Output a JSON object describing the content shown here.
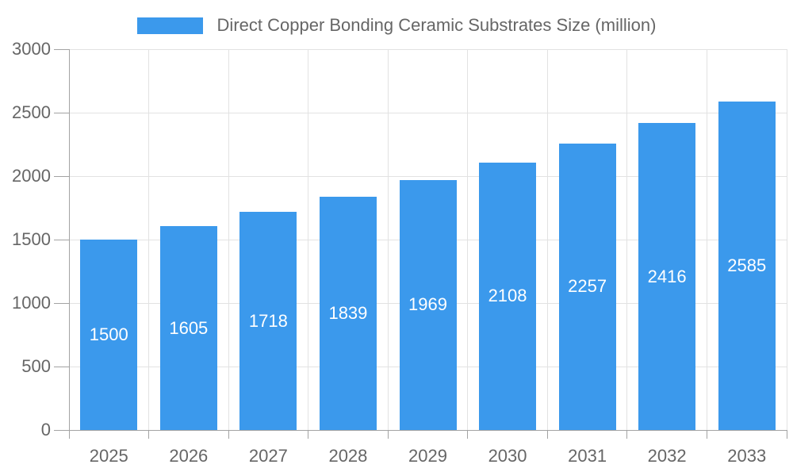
{
  "legend": {
    "label": "Direct Copper Bonding Ceramic Substrates Size (million)",
    "swatch_color": "#3b99ec"
  },
  "chart_data": {
    "type": "bar",
    "title": "Direct Copper Bonding Ceramic Substrates Size (million)",
    "categories": [
      "2025",
      "2026",
      "2027",
      "2028",
      "2029",
      "2030",
      "2031",
      "2032",
      "2033"
    ],
    "values": [
      1500,
      1605,
      1718,
      1839,
      1969,
      2108,
      2257,
      2416,
      2585
    ],
    "xlabel": "",
    "ylabel": "",
    "ylim": [
      0,
      3000
    ],
    "yticks": [
      0,
      500,
      1000,
      1500,
      2000,
      2500,
      3000
    ],
    "grid": true,
    "legend_position": "top",
    "value_labels": "inside-center-white",
    "colors": {
      "bar": "#3b99ec",
      "value_label": "#ffffff",
      "axis_text": "#666666",
      "legend_text": "#666666",
      "gridline": "#e2e2e2",
      "axis_line": "#a3a3a3",
      "background": "#ffffff"
    }
  }
}
